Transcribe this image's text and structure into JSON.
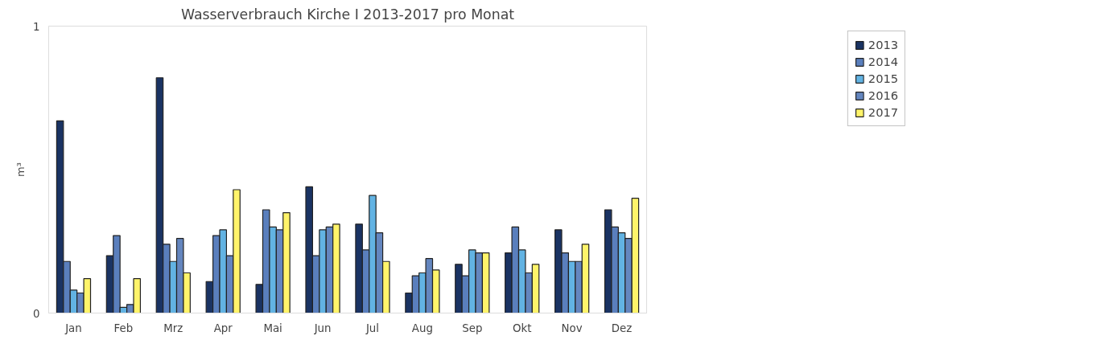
{
  "chart_data": {
    "type": "bar",
    "title": "Wasserverbrauch Kirche I 2013-2017 pro Monat",
    "ylabel": "m³",
    "categories": [
      "Jan",
      "Feb",
      "Mrz",
      "Apr",
      "Mai",
      "Jun",
      "Jul",
      "Aug",
      "Sep",
      "Okt",
      "Nov",
      "Dez"
    ],
    "series": [
      {
        "name": "2013",
        "color": "#1a3363",
        "values": [
          0.67,
          0.2,
          0.82,
          0.11,
          0.1,
          0.44,
          0.31,
          0.07,
          0.17,
          0.21,
          0.29,
          0.36
        ]
      },
      {
        "name": "2014",
        "color": "#5a7fbd",
        "values": [
          0.18,
          0.27,
          0.24,
          0.27,
          0.36,
          0.2,
          0.22,
          0.13,
          0.13,
          0.3,
          0.21,
          0.3
        ]
      },
      {
        "name": "2015",
        "color": "#62b3e3",
        "values": [
          0.08,
          0.02,
          0.18,
          0.29,
          0.3,
          0.29,
          0.41,
          0.14,
          0.22,
          0.22,
          0.18,
          0.28
        ]
      },
      {
        "name": "2016",
        "color": "#6486bf",
        "values": [
          0.07,
          0.03,
          0.26,
          0.2,
          0.29,
          0.3,
          0.28,
          0.19,
          0.21,
          0.14,
          0.18,
          0.26
        ]
      },
      {
        "name": "2017",
        "color": "#fff46a",
        "values": [
          0.12,
          0.12,
          0.14,
          0.43,
          0.35,
          0.31,
          0.18,
          0.15,
          0.21,
          0.17,
          0.24,
          0.4
        ]
      }
    ],
    "ylim": [
      0,
      1
    ],
    "yticks": [
      0,
      1
    ],
    "grid": false,
    "legend": "top right"
  }
}
